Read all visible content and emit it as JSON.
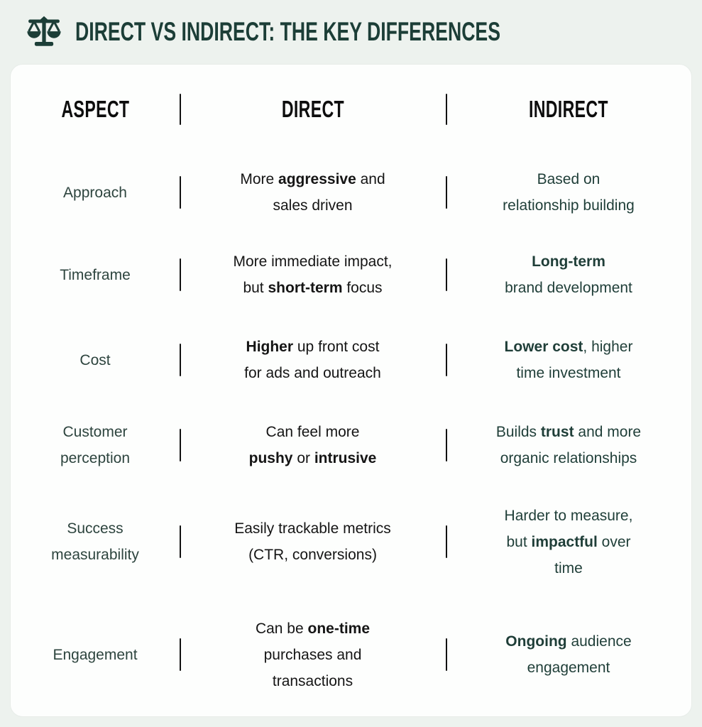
{
  "header": {
    "title": "Direct vs Indirect: The key differences",
    "icon": "balance-scale-icon"
  },
  "colors": {
    "bg": "#edf2ee",
    "card-bg": "#fdfefd",
    "title-green": "#1c3e37",
    "header-black": "#0d0d0d",
    "aspect-color": "#2d443e",
    "direct-color": "#151515",
    "indirect-color": "#1f3e38",
    "divider-color": "#111111"
  },
  "table": {
    "columns": [
      "ASPECT",
      "DIRECT",
      "INDIRECT"
    ],
    "rows": [
      {
        "aspect": "Approach",
        "direct": "More **aggressive** and\nsales driven",
        "indirect": "Based on\nrelationship building"
      },
      {
        "aspect": "Timeframe",
        "direct": "More immediate impact,\nbut **short-term** focus",
        "indirect": "**Long-term**\nbrand development"
      },
      {
        "aspect": "Cost",
        "direct": "**Higher** up front cost\nfor ads and outreach",
        "indirect": "**Lower cost**, higher\ntime investment"
      },
      {
        "aspect": "Customer\nperception",
        "direct": "Can feel more\n**pushy** or **intrusive**",
        "indirect": "Builds **trust** and more\norganic relationships"
      },
      {
        "aspect": "Success\nmeasurability",
        "direct": "Easily trackable metrics\n(CTR, conversions)",
        "indirect": "Harder to measure,\nbut **impactful** over\ntime"
      },
      {
        "aspect": "Engagement",
        "direct": "Can be **one-time**\npurchases and\ntransactions",
        "indirect": "**Ongoing** audience\nengagement"
      }
    ]
  }
}
